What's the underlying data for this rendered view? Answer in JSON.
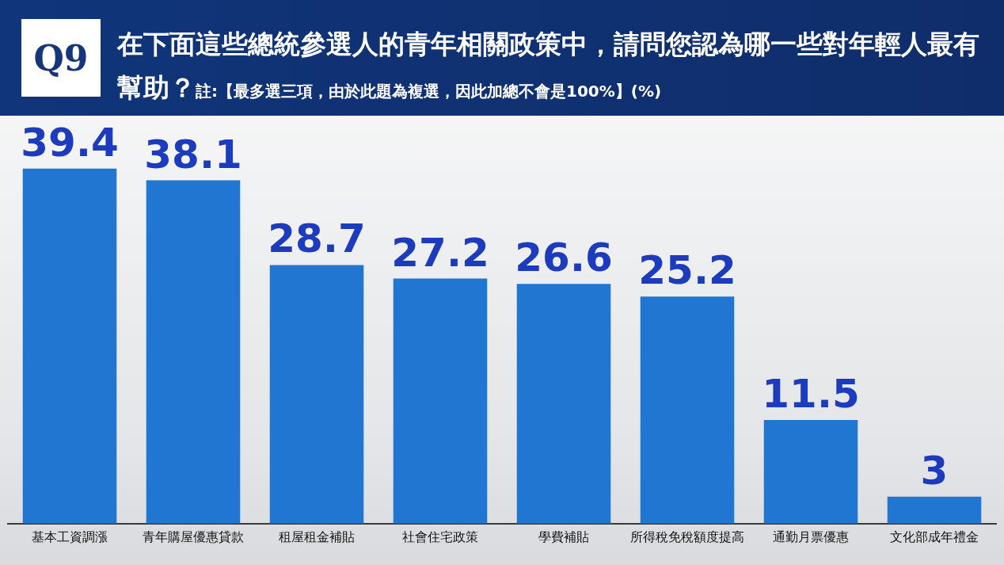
{
  "chart_data": {
    "type": "bar",
    "title": "在下面這些總統參選人的青年相關政策中，請問您認為哪一些對年輕人最有幫助？",
    "subtitle": "註:【最多選三項，由於此題為複選，因此加總不會是100%】(%)",
    "annotations": [
      "Q9"
    ],
    "categories": [
      "基本工資調漲",
      "青年購屋優惠貸款",
      "租屋租金補貼",
      "社會住宅政策",
      "學費補貼",
      "所得稅免稅額度提高",
      "通勤月票優惠",
      "文化部成年禮金"
    ],
    "values": [
      39.4,
      38.1,
      28.7,
      27.2,
      26.6,
      25.2,
      11.5,
      3
    ],
    "color": "#2176d2",
    "data_labels": true,
    "grid": false,
    "legend": false
  }
}
